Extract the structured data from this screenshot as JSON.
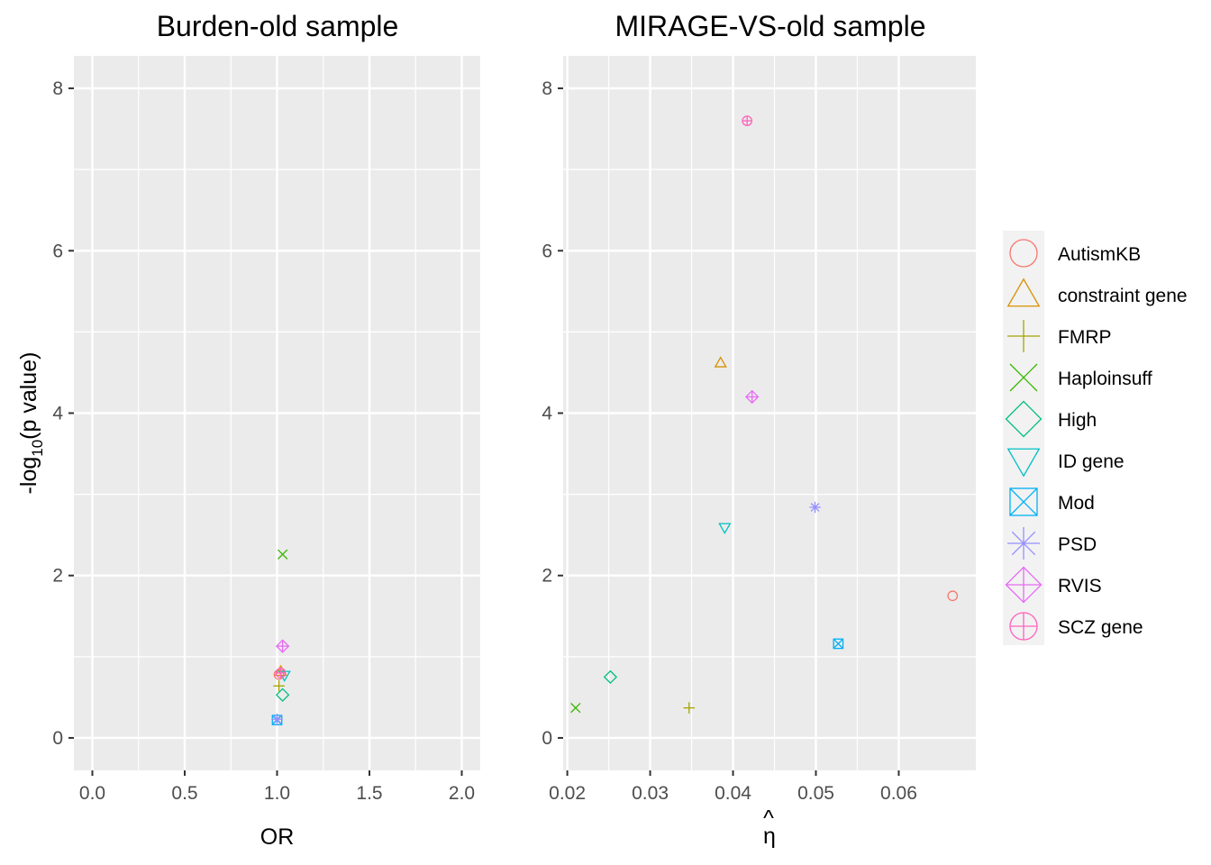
{
  "chart_data": [
    {
      "type": "scatter",
      "title": "Burden-old sample",
      "xlabel": "OR",
      "ylabel": "-log10(p value)",
      "ylabel_main": "-log",
      "ylabel_sub": "10",
      "ylabel_rest": "(p value)",
      "xlim": [
        -0.1,
        2.1
      ],
      "ylim": [
        -0.4,
        8.4
      ],
      "xticks": [
        0.0,
        0.5,
        1.0,
        1.5,
        2.0
      ],
      "xtick_labels": [
        "0.0",
        "0.5",
        "1.0",
        "1.5",
        "2.0"
      ],
      "yticks": [
        0,
        2,
        4,
        6,
        8
      ],
      "ytick_labels": [
        "0",
        "2",
        "4",
        "6",
        "8"
      ],
      "grid": true,
      "points": [
        {
          "series": "AutismKB",
          "x": 1.01,
          "y": 0.78
        },
        {
          "series": "constraint gene",
          "x": 1.02,
          "y": 0.82
        },
        {
          "series": "FMRP",
          "x": 1.01,
          "y": 0.64
        },
        {
          "series": "Haploinsuff",
          "x": 1.03,
          "y": 2.26
        },
        {
          "series": "High",
          "x": 1.03,
          "y": 0.53
        },
        {
          "series": "ID gene",
          "x": 1.04,
          "y": 0.77
        },
        {
          "series": "Mod",
          "x": 1.0,
          "y": 0.22
        },
        {
          "series": "PSD",
          "x": 1.0,
          "y": 0.23
        },
        {
          "series": "RVIS",
          "x": 1.03,
          "y": 1.13
        },
        {
          "series": "SCZ gene",
          "x": 1.02,
          "y": 0.8
        }
      ]
    },
    {
      "type": "scatter",
      "title": "MIRAGE-VS-old sample",
      "xlabel": "η̂",
      "xlabel_char": "η",
      "xlabel_hat": "^",
      "ylabel": "",
      "xlim": [
        0.0195,
        0.0693
      ],
      "ylim": [
        -0.4,
        8.4
      ],
      "xticks": [
        0.02,
        0.03,
        0.04,
        0.05,
        0.06
      ],
      "xtick_labels": [
        "0.02",
        "0.03",
        "0.04",
        "0.05",
        "0.06"
      ],
      "yticks": [
        0,
        2,
        4,
        6,
        8
      ],
      "ytick_labels": [
        "0",
        "2",
        "4",
        "6",
        "8"
      ],
      "grid": true,
      "points": [
        {
          "series": "AutismKB",
          "x": 0.0665,
          "y": 1.75
        },
        {
          "series": "constraint gene",
          "x": 0.0385,
          "y": 4.62
        },
        {
          "series": "FMRP",
          "x": 0.0347,
          "y": 0.37
        },
        {
          "series": "Haploinsuff",
          "x": 0.021,
          "y": 0.37
        },
        {
          "series": "High",
          "x": 0.0252,
          "y": 0.75
        },
        {
          "series": "ID gene",
          "x": 0.039,
          "y": 2.59
        },
        {
          "series": "Mod",
          "x": 0.0527,
          "y": 1.16
        },
        {
          "series": "PSD",
          "x": 0.0499,
          "y": 2.84
        },
        {
          "series": "RVIS",
          "x": 0.0423,
          "y": 4.2
        },
        {
          "series": "SCZ gene",
          "x": 0.0417,
          "y": 7.6
        }
      ]
    }
  ],
  "legend": {
    "placement": "right",
    "entries": [
      {
        "label": "AutismKB",
        "shape": "circle-icon",
        "color": "#F8766D"
      },
      {
        "label": "constraint gene",
        "shape": "triangle-up-icon",
        "color": "#D89000"
      },
      {
        "label": "FMRP",
        "shape": "plus-icon",
        "color": "#A3A500"
      },
      {
        "label": "Haploinsuff",
        "shape": "cross-icon",
        "color": "#39B600"
      },
      {
        "label": "High",
        "shape": "diamond-icon",
        "color": "#00BF7D"
      },
      {
        "label": "ID gene",
        "shape": "triangle-down-icon",
        "color": "#00BFC4"
      },
      {
        "label": "Mod",
        "shape": "square-cross-icon",
        "color": "#00B0F6"
      },
      {
        "label": "PSD",
        "shape": "asterisk-icon",
        "color": "#9590FF"
      },
      {
        "label": "RVIS",
        "shape": "diamond-plus-icon",
        "color": "#E76BF3"
      },
      {
        "label": "SCZ gene",
        "shape": "circle-plus-icon",
        "color": "#FF62BC"
      }
    ]
  }
}
